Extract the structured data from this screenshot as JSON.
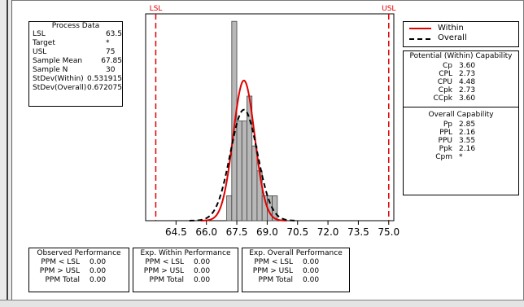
{
  "process_data": {
    "title": "Process Data",
    "rows": [
      {
        "label": "LSL",
        "value": "63.5"
      },
      {
        "label": "Target",
        "value": "*"
      },
      {
        "label": "USL",
        "value": "75"
      },
      {
        "label": "Sample Mean",
        "value": "67.85"
      },
      {
        "label": "Sample N",
        "value": "30"
      },
      {
        "label": "StDev(Within)",
        "value": "0.531915"
      },
      {
        "label": "StDev(Overall)",
        "value": "0.672075"
      }
    ]
  },
  "legend": {
    "within": "Within",
    "overall": "Overall"
  },
  "potential_capability": {
    "title": "Potential (Within) Capability",
    "rows": [
      {
        "label": "Cp",
        "value": "3.60"
      },
      {
        "label": "CPL",
        "value": "2.73"
      },
      {
        "label": "CPU",
        "value": "4.48"
      },
      {
        "label": "Cpk",
        "value": "2.73"
      },
      {
        "label": "CCpk",
        "value": "3.60"
      }
    ]
  },
  "overall_capability": {
    "title": "Overall Capability",
    "rows": [
      {
        "label": "Pp",
        "value": "2.85"
      },
      {
        "label": "PPL",
        "value": "2.16"
      },
      {
        "label": "PPU",
        "value": "3.55"
      },
      {
        "label": "Ppk",
        "value": "2.16"
      },
      {
        "label": "Cpm",
        "value": "*"
      }
    ]
  },
  "observed_performance": {
    "title": "Observed Performance",
    "rows": [
      {
        "label": "PPM < LSL",
        "value": "0.00"
      },
      {
        "label": "PPM > USL",
        "value": "0.00"
      },
      {
        "label": "PPM Total",
        "value": "0.00"
      }
    ]
  },
  "exp_within_performance": {
    "title": "Exp. Within Performance",
    "rows": [
      {
        "label": "PPM < LSL",
        "value": "0.00"
      },
      {
        "label": "PPM > USL",
        "value": "0.00"
      },
      {
        "label": "PPM Total",
        "value": "0.00"
      }
    ]
  },
  "exp_overall_performance": {
    "title": "Exp. Overall Performance",
    "rows": [
      {
        "label": "PPM < LSL",
        "value": "0.00"
      },
      {
        "label": "PPM > USL",
        "value": "0.00"
      },
      {
        "label": "PPM Total",
        "value": "0.00"
      }
    ]
  },
  "chart_data": {
    "type": "bar",
    "title": "",
    "xlabel": "",
    "ylabel": "",
    "xlim": [
      63.0,
      75.25
    ],
    "x_ticks": [
      64.5,
      66.0,
      67.5,
      69.0,
      70.5,
      72.0,
      73.5,
      75.0
    ],
    "x_tick_labels": [
      "64.5",
      "66.0",
      "67.5",
      "69.0",
      "70.5",
      "72.0",
      "73.5",
      "75.0"
    ],
    "bin_width": 0.25,
    "bins": [
      {
        "x": 67.0,
        "count": 1
      },
      {
        "x": 67.25,
        "count": 8
      },
      {
        "x": 67.5,
        "count": 4
      },
      {
        "x": 67.75,
        "count": 4
      },
      {
        "x": 68.0,
        "count": 5
      },
      {
        "x": 68.25,
        "count": 3
      },
      {
        "x": 68.5,
        "count": 2
      },
      {
        "x": 68.75,
        "count": 1
      },
      {
        "x": 69.0,
        "count": 1
      },
      {
        "x": 69.25,
        "count": 1
      }
    ],
    "ylim": [
      0,
      8.3
    ],
    "lsl": {
      "label": "LSL",
      "value": 63.5
    },
    "usl": {
      "label": "USL",
      "value": 75
    },
    "mean": 67.85,
    "n": 30,
    "series": [
      {
        "name": "Within",
        "stdev": 0.531915,
        "color": "#e00000",
        "style": "solid"
      },
      {
        "name": "Overall",
        "stdev": 0.672075,
        "color": "#000000",
        "style": "dashed"
      }
    ],
    "colors": {
      "bars": "#b8b8b8",
      "spec_lines": "#e00000"
    }
  }
}
